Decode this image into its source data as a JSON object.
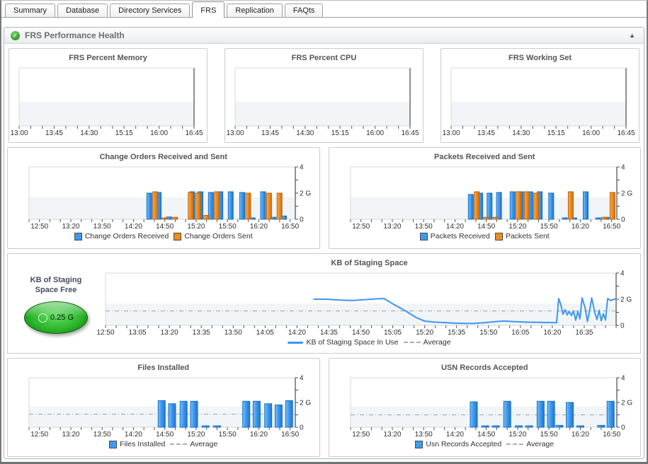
{
  "tabs": [
    {
      "label": "Summary",
      "active": false
    },
    {
      "label": "Database",
      "active": false
    },
    {
      "label": "Directory Services",
      "active": false
    },
    {
      "label": "FRS",
      "active": true
    },
    {
      "label": "Replication",
      "active": false
    },
    {
      "label": "FAQts",
      "active": false
    }
  ],
  "section": {
    "title": "FRS Performance Health"
  },
  "icons": {
    "status_ok": "✓",
    "collapse": "▲"
  },
  "gauge": {
    "label": "KB of Staging Space Free",
    "value": "0.25 G"
  },
  "colors": {
    "bar_blue": "#3e9af0",
    "bar_blue_light": "#7cc0f7",
    "bar_blue_dark": "#2276cf",
    "bar_blue_stroke": "#1a6fc2",
    "bar_orange": "#ef8c20",
    "bar_orange_light": "#f7b357",
    "bar_orange_dark": "#cf6f10",
    "bar_orange_stroke": "#b96312",
    "line_blue": "#3f96ee",
    "average_gray": "#9aa0a8",
    "band_fill": "#f1f5f8",
    "axis_dark": "#4a4a4a",
    "axis_light": "#d4d9dd",
    "tick_color": "#555555",
    "label_color": "#2f2f2f"
  },
  "chart_data": [
    {
      "id": "frs-percent-memory",
      "type": "line",
      "title": "FRS Percent Memory",
      "x_labels": [
        "13:00",
        "13:45",
        "14:30",
        "15:15",
        "16:00",
        "16:45"
      ],
      "major_step": 45,
      "minor_step": 15,
      "t_range": [
        0,
        225
      ],
      "ylim": [
        0,
        4
      ],
      "series": []
    },
    {
      "id": "frs-percent-cpu",
      "type": "line",
      "title": "FRS Percent CPU",
      "x_labels": [
        "13:00",
        "13:45",
        "14:30",
        "15:15",
        "16:00",
        "16:45"
      ],
      "major_step": 45,
      "minor_step": 15,
      "t_range": [
        0,
        225
      ],
      "ylim": [
        0,
        4
      ],
      "series": []
    },
    {
      "id": "frs-working-set",
      "type": "line",
      "title": "FRS Working Set",
      "x_labels": [
        "13:00",
        "13:45",
        "14:30",
        "15:15",
        "16:00",
        "16:45"
      ],
      "major_step": 45,
      "minor_step": 15,
      "t_range": [
        0,
        225
      ],
      "ylim": [
        0,
        4
      ],
      "series": []
    },
    {
      "id": "change-orders",
      "type": "bar",
      "title": "Change Orders Received and Sent",
      "x_labels": [
        "12:50",
        "13:20",
        "13:50",
        "14:20",
        "14:50",
        "15:20",
        "15:50",
        "16:20",
        "16:50"
      ],
      "major_step": 30,
      "minor_step": 10,
      "t_range": [
        -10,
        245
      ],
      "ylim": [
        0,
        4
      ],
      "y_ticks": [
        {
          "v": 0,
          "label": "0"
        },
        {
          "v": 2,
          "label": "2 G"
        },
        {
          "v": 4,
          "label": "4"
        }
      ],
      "series": [
        {
          "name": "Change Orders Received",
          "color": "blue",
          "marker": "square",
          "bars": [
            [
              108,
              2.0
            ],
            [
              117,
              2.05
            ],
            [
              127,
              0.18
            ],
            [
              149,
              2.1
            ],
            [
              157,
              2.1
            ],
            [
              167,
              2.05
            ],
            [
              176,
              2.1
            ],
            [
              186,
              2.1
            ],
            [
              197,
              2.05
            ],
            [
              207,
              0.1
            ],
            [
              217,
              2.1
            ],
            [
              227,
              0.15
            ],
            [
              237,
              0.25
            ]
          ]
        },
        {
          "name": "Change Orders Sent",
          "color": "orange",
          "marker": "square",
          "bars": [
            [
              108,
              2.1
            ],
            [
              117,
              0.08
            ],
            [
              127,
              0.15
            ],
            [
              142,
              2.05
            ],
            [
              149,
              2.0
            ],
            [
              157,
              0.3
            ],
            [
              167,
              2.1
            ],
            [
              197,
              2.0
            ],
            [
              217,
              2.0
            ],
            [
              227,
              2.0
            ]
          ]
        }
      ]
    },
    {
      "id": "packets",
      "type": "bar",
      "title": "Packets Received and Sent",
      "x_labels": [
        "12:50",
        "13:20",
        "13:50",
        "14:20",
        "14:50",
        "15:20",
        "15:50",
        "16:20",
        "16:50"
      ],
      "major_step": 30,
      "minor_step": 10,
      "t_range": [
        -10,
        245
      ],
      "ylim": [
        0,
        4
      ],
      "y_ticks": [
        {
          "v": 0,
          "label": "0"
        },
        {
          "v": 2,
          "label": "2 G"
        },
        {
          "v": 4,
          "label": "4"
        }
      ],
      "series": [
        {
          "name": "Packets Received",
          "color": "blue",
          "marker": "square",
          "bars": [
            [
              108,
              1.9
            ],
            [
              117,
              2.0
            ],
            [
              126,
              2.0
            ],
            [
              135,
              2.05
            ],
            [
              148,
              2.1
            ],
            [
              156,
              2.1
            ],
            [
              165,
              2.1
            ],
            [
              174,
              2.1
            ],
            [
              185,
              2.0
            ],
            [
              198,
              0.1
            ],
            [
              207,
              0.1
            ],
            [
              218,
              2.1
            ],
            [
              230,
              0.05
            ],
            [
              238,
              0.15
            ]
          ]
        },
        {
          "name": "Packets Sent",
          "color": "orange",
          "marker": "square",
          "bars": [
            [
              108,
              2.1
            ],
            [
              117,
              0.15
            ],
            [
              126,
              0.15
            ],
            [
              148,
              2.1
            ],
            [
              156,
              2.1
            ],
            [
              165,
              2.0
            ],
            [
              198,
              2.1
            ],
            [
              230,
              0.15
            ],
            [
              238,
              2.05
            ]
          ]
        }
      ]
    },
    {
      "id": "staging-space",
      "type": "line",
      "title": "KB of Staging Space",
      "x_labels": [
        "12:50",
        "13:05",
        "13:20",
        "13:35",
        "13:50",
        "14:05",
        "14:20",
        "14:35",
        "14:50",
        "15:05",
        "15:20",
        "15:35",
        "15:50",
        "16:05",
        "16:20",
        "16:35"
      ],
      "major_step": 15,
      "minor_step": 5,
      "t_range": [
        0,
        240
      ],
      "ylim": [
        0,
        4
      ],
      "y_ticks": [
        {
          "v": 0,
          "label": "0"
        },
        {
          "v": 2,
          "label": "2 G"
        },
        {
          "v": 4,
          "label": "4"
        }
      ],
      "average": {
        "label": "Average",
        "value": 1.1
      },
      "series": [
        {
          "name": "KB of Staging Space In Use",
          "color": "blue",
          "marker": "line",
          "points": [
            [
              98,
              2.0
            ],
            [
              104,
              2.0
            ],
            [
              110,
              1.93
            ],
            [
              116,
              1.9
            ],
            [
              122,
              1.97
            ],
            [
              128,
              2.03
            ],
            [
              131,
              2.05
            ],
            [
              136,
              1.55
            ],
            [
              141,
              1.1
            ],
            [
              146,
              0.6
            ],
            [
              150,
              0.33
            ],
            [
              154,
              0.26
            ],
            [
              158,
              0.22
            ],
            [
              163,
              0.18
            ],
            [
              168,
              0.15
            ],
            [
              173,
              0.15
            ],
            [
              178,
              0.2
            ],
            [
              183,
              0.28
            ],
            [
              187,
              0.33
            ],
            [
              191,
              0.3
            ],
            [
              196,
              0.26
            ],
            [
              201,
              0.24
            ],
            [
              206,
              0.22
            ],
            [
              212,
              0.2
            ],
            [
              213,
              2.05
            ],
            [
              214,
              1.6
            ],
            [
              215,
              0.85
            ],
            [
              216,
              1.2
            ],
            [
              217,
              0.8
            ],
            [
              218,
              1.05
            ],
            [
              219,
              0.75
            ],
            [
              220,
              1.1
            ],
            [
              221,
              0.4
            ],
            [
              222,
              1.05
            ],
            [
              223,
              0.5
            ],
            [
              224,
              2.1
            ],
            [
              225.5,
              1.3
            ],
            [
              226.5,
              0.3
            ],
            [
              227.5,
              1.05
            ],
            [
              228.5,
              2.1
            ],
            [
              230,
              0.95
            ],
            [
              231,
              0.45
            ],
            [
              232,
              1.15
            ],
            [
              233,
              0.35
            ],
            [
              234,
              0.9
            ],
            [
              235,
              0.4
            ],
            [
              236,
              2.05
            ],
            [
              237.5,
              1.9
            ],
            [
              239,
              2.0
            ],
            [
              240,
              2.0
            ]
          ]
        }
      ]
    },
    {
      "id": "files-installed",
      "type": "bar",
      "title": "Files Installed",
      "x_labels": [
        "12:50",
        "13:20",
        "13:50",
        "14:20",
        "14:50",
        "15:20",
        "15:50",
        "16:20",
        "16:50"
      ],
      "major_step": 30,
      "minor_step": 10,
      "t_range": [
        -10,
        245
      ],
      "ylim": [
        0,
        4
      ],
      "y_ticks": [
        {
          "v": 0,
          "label": "0"
        },
        {
          "v": 2,
          "label": "2 G"
        },
        {
          "v": 4,
          "label": "4"
        }
      ],
      "average": {
        "label": "Average",
        "value": 1.05
      },
      "series": [
        {
          "name": "Files Installed",
          "color": "blue",
          "marker": "square",
          "bars": [
            [
              117,
              2.15
            ],
            [
              127,
              1.9
            ],
            [
              138,
              2.1
            ],
            [
              148,
              2.1
            ],
            [
              159,
              0.1
            ],
            [
              170,
              0.1
            ],
            [
              198,
              2.1
            ],
            [
              208,
              2.1
            ],
            [
              219,
              1.9
            ],
            [
              229,
              1.8
            ],
            [
              239,
              2.15
            ]
          ]
        }
      ]
    },
    {
      "id": "usn-records",
      "type": "bar",
      "title": "USN Records Accepted",
      "x_labels": [
        "12:50",
        "13:20",
        "13:50",
        "14:20",
        "14:50",
        "15:20",
        "15:50",
        "16:20",
        "16:50"
      ],
      "major_step": 30,
      "minor_step": 10,
      "t_range": [
        -10,
        245
      ],
      "ylim": [
        0,
        4
      ],
      "y_ticks": [
        {
          "v": 0,
          "label": "0"
        },
        {
          "v": 2,
          "label": "2 G"
        },
        {
          "v": 4,
          "label": "4"
        }
      ],
      "average": {
        "label": "Average",
        "value": 1.0
      },
      "series": [
        {
          "name": "Usn Records Accepted",
          "color": "blue",
          "marker": "square",
          "bars": [
            [
              108,
              2.05
            ],
            [
              119,
              0.1
            ],
            [
              129,
              0.1
            ],
            [
              140,
              2.1
            ],
            [
              151,
              0.1
            ],
            [
              161,
              0.1
            ],
            [
              172,
              2.1
            ],
            [
              182,
              2.1
            ],
            [
              190,
              0.15
            ],
            [
              200,
              2.0
            ],
            [
              210,
              0.1
            ],
            [
              230,
              0.15
            ],
            [
              239,
              2.1
            ]
          ]
        }
      ]
    }
  ]
}
